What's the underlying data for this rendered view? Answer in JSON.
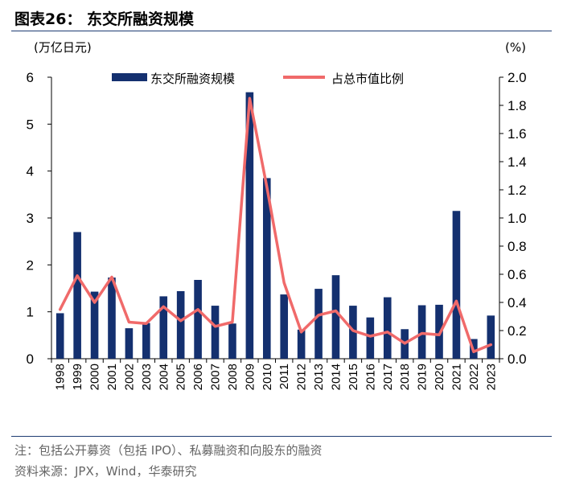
{
  "header": {
    "title": "图表26：  东交所融资规模"
  },
  "colors": {
    "bar": "#14306f",
    "line": "#f06a6a",
    "rule": "#1e3c72",
    "note": "#666666"
  },
  "chart_data": {
    "type": "bar+line",
    "categories": [
      "1998",
      "1999",
      "2000",
      "2001",
      "2002",
      "2003",
      "2004",
      "2005",
      "2006",
      "2007",
      "2008",
      "2009",
      "2010",
      "2011",
      "2012",
      "2013",
      "2014",
      "2015",
      "2016",
      "2017",
      "2018",
      "2019",
      "2020",
      "2021",
      "2022",
      "2023"
    ],
    "series": [
      {
        "name": "东交所融资规模",
        "type": "bar",
        "axis": "left",
        "values": [
          0.97,
          2.7,
          1.43,
          1.73,
          0.65,
          0.76,
          1.33,
          1.44,
          1.68,
          1.13,
          0.75,
          5.68,
          3.85,
          1.37,
          0.62,
          1.49,
          1.78,
          1.13,
          0.88,
          1.31,
          0.63,
          1.14,
          1.15,
          3.15,
          0.42,
          0.92
        ]
      },
      {
        "name": "占总市值比例",
        "type": "line",
        "axis": "right",
        "values": [
          0.35,
          0.59,
          0.4,
          0.58,
          0.26,
          0.25,
          0.37,
          0.27,
          0.35,
          0.23,
          0.26,
          1.85,
          1.22,
          0.54,
          0.19,
          0.31,
          0.34,
          0.2,
          0.16,
          0.19,
          0.11,
          0.18,
          0.17,
          0.41,
          0.05,
          0.1
        ]
      }
    ],
    "y_left": {
      "label": "(万亿日元)",
      "min": 0,
      "max": 6,
      "ticks": [
        "0",
        "1",
        "2",
        "3",
        "4",
        "5",
        "6"
      ]
    },
    "y_right": {
      "label": "(%)",
      "min": 0,
      "max": 2,
      "ticks": [
        "0.0",
        "0.2",
        "0.4",
        "0.6",
        "0.8",
        "1.0",
        "1.2",
        "1.4",
        "1.6",
        "1.8",
        "2.0"
      ]
    },
    "legend": {
      "position": "top",
      "items": [
        "东交所融资规模",
        "占总市值比例"
      ]
    }
  },
  "notes": {
    "note1": "注：包括公开募资（包括 IPO）、私募融资和向股东的融资",
    "source": "资料来源：JPX，Wind，华泰研究"
  }
}
